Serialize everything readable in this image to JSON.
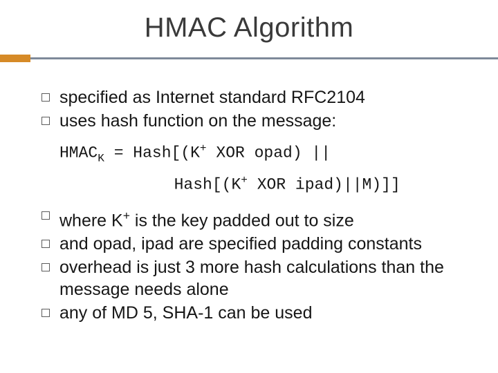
{
  "slide": {
    "title": "HMAC Algorithm",
    "title_fontsize": 40,
    "title_color": "#3a3a3a",
    "rule_line_color": "#7e8999",
    "rule_accent_color": "#d68a27",
    "body_fontsize": 25,
    "body_color": "#161616",
    "code_fontsize": 23,
    "bullets_top": [
      "specified as Internet standard RFC2104",
      "uses hash function on the message:"
    ],
    "code": {
      "prefix": "HMAC",
      "sub": "K",
      "line1_rest": " = Hash[(K",
      "sup1": "+",
      "line1_tail": " XOR opad) ||",
      "line2_lead": "            Hash[(K",
      "sup2": "+",
      "line2_tail": " XOR ipad)||M)]]"
    },
    "bullets_bottom": [
      {
        "pre": "where K",
        "sup": "+",
        "post": " is the key padded out to size"
      },
      {
        "text": "and opad, ipad are specified padding constants"
      },
      {
        "text": "overhead is just 3 more hash calculations than the message needs alone"
      },
      {
        "text": "any of MD 5, SHA-1 can be used"
      }
    ],
    "background_color": "#ffffff"
  }
}
